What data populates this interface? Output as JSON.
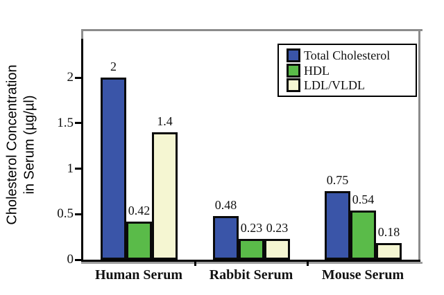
{
  "chart_data": {
    "type": "bar",
    "title": "",
    "categories": [
      "Human Serum",
      "Rabbit Serum",
      "Mouse Serum"
    ],
    "series": [
      {
        "name": "Total Cholesterol",
        "color": "#3A55A8",
        "values": [
          2,
          0.48,
          0.75
        ],
        "value_labels": [
          "2",
          "0.48",
          "0.75"
        ]
      },
      {
        "name": "HDL",
        "color": "#5ABB49",
        "values": [
          0.42,
          0.23,
          0.54
        ],
        "value_labels": [
          "0.42",
          "0.23",
          "0.54"
        ]
      },
      {
        "name": "LDL/VLDL",
        "color": "#F5F6D2",
        "values": [
          1.4,
          0.23,
          0.18
        ],
        "value_labels": [
          "1.4",
          "0.23",
          "0.18"
        ]
      }
    ],
    "xlabel": "",
    "ylabel": "Cholesterol Concentration in Serum (µg/µl)",
    "ylabel_lines": [
      "Cholesterol Concentration",
      "in Serum (µg/µl)"
    ],
    "yticks": [
      0,
      0.5,
      1,
      1.5,
      2
    ],
    "ytick_labels": [
      "0",
      "0.5",
      "1",
      "1.5",
      "2"
    ],
    "ylim": [
      0,
      2.5
    ],
    "grid": false,
    "legend_position": "top-right",
    "legend": [
      "Total Cholesterol",
      "HDL",
      "LDL/VLDL"
    ]
  },
  "colors": {
    "total_cholesterol": "#3A55A8",
    "hdl": "#5ABB49",
    "ldl_vldl": "#F5F6D2",
    "bar_border": "#0A0A0A",
    "frame_gray": "#8C8C8C",
    "axis_shadow_gray": "#9D9D9D",
    "axis_black": "#000000",
    "background": "#FFFFFF",
    "text": "#111111"
  }
}
